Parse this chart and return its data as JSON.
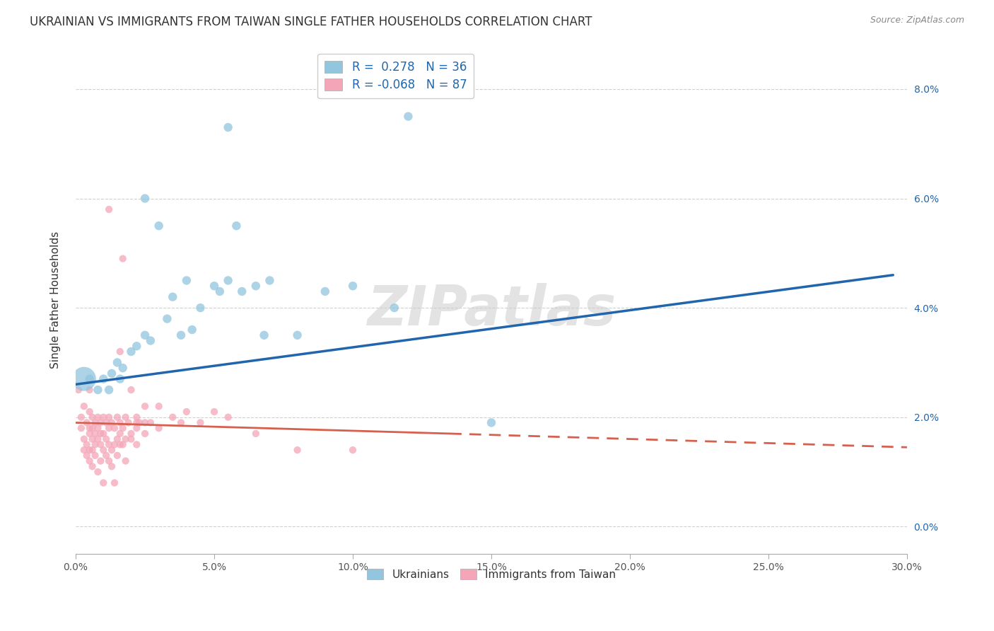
{
  "title": "UKRAINIAN VS IMMIGRANTS FROM TAIWAN SINGLE FATHER HOUSEHOLDS CORRELATION CHART",
  "source": "Source: ZipAtlas.com",
  "ylabel": "Single Father Households",
  "xlabel_ticks": [
    "0.0%",
    "5.0%",
    "10.0%",
    "15.0%",
    "20.0%",
    "25.0%",
    "30.0%"
  ],
  "ylabel_ticks_right": [
    "8.0%",
    "6.0%",
    "4.0%",
    "2.0%",
    "0.0%"
  ],
  "xlim": [
    0.0,
    0.3
  ],
  "ylim": [
    -0.005,
    0.088
  ],
  "background_color": "#ffffff",
  "watermark": "ZIPatlas",
  "blue_color": "#92c5de",
  "blue_line_color": "#2166ac",
  "pink_color": "#f4a6b8",
  "pink_line_color": "#d6604d",
  "blue_scatter": [
    [
      0.003,
      0.027
    ],
    [
      0.005,
      0.027
    ],
    [
      0.008,
      0.025
    ],
    [
      0.01,
      0.027
    ],
    [
      0.012,
      0.025
    ],
    [
      0.013,
      0.028
    ],
    [
      0.015,
      0.03
    ],
    [
      0.016,
      0.027
    ],
    [
      0.017,
      0.029
    ],
    [
      0.02,
      0.032
    ],
    [
      0.022,
      0.033
    ],
    [
      0.025,
      0.035
    ],
    [
      0.025,
      0.06
    ],
    [
      0.027,
      0.034
    ],
    [
      0.03,
      0.055
    ],
    [
      0.033,
      0.038
    ],
    [
      0.035,
      0.042
    ],
    [
      0.038,
      0.035
    ],
    [
      0.04,
      0.045
    ],
    [
      0.042,
      0.036
    ],
    [
      0.045,
      0.04
    ],
    [
      0.05,
      0.044
    ],
    [
      0.052,
      0.043
    ],
    [
      0.055,
      0.045
    ],
    [
      0.055,
      0.073
    ],
    [
      0.058,
      0.055
    ],
    [
      0.06,
      0.043
    ],
    [
      0.065,
      0.044
    ],
    [
      0.068,
      0.035
    ],
    [
      0.07,
      0.045
    ],
    [
      0.08,
      0.035
    ],
    [
      0.09,
      0.043
    ],
    [
      0.1,
      0.044
    ],
    [
      0.115,
      0.04
    ],
    [
      0.12,
      0.075
    ],
    [
      0.15,
      0.019
    ]
  ],
  "blue_sizes": [
    600,
    80,
    80,
    80,
    80,
    80,
    80,
    80,
    80,
    80,
    80,
    80,
    80,
    80,
    80,
    80,
    80,
    80,
    80,
    80,
    80,
    80,
    80,
    80,
    80,
    80,
    80,
    80,
    80,
    80,
    80,
    80,
    80,
    80,
    80,
    80
  ],
  "pink_scatter": [
    [
      0.001,
      0.025
    ],
    [
      0.002,
      0.02
    ],
    [
      0.002,
      0.018
    ],
    [
      0.003,
      0.022
    ],
    [
      0.003,
      0.016
    ],
    [
      0.003,
      0.014
    ],
    [
      0.004,
      0.019
    ],
    [
      0.004,
      0.015
    ],
    [
      0.004,
      0.013
    ],
    [
      0.005,
      0.025
    ],
    [
      0.005,
      0.021
    ],
    [
      0.005,
      0.018
    ],
    [
      0.005,
      0.017
    ],
    [
      0.005,
      0.014
    ],
    [
      0.005,
      0.012
    ],
    [
      0.006,
      0.02
    ],
    [
      0.006,
      0.018
    ],
    [
      0.006,
      0.016
    ],
    [
      0.006,
      0.014
    ],
    [
      0.006,
      0.011
    ],
    [
      0.007,
      0.019
    ],
    [
      0.007,
      0.017
    ],
    [
      0.007,
      0.015
    ],
    [
      0.007,
      0.013
    ],
    [
      0.008,
      0.02
    ],
    [
      0.008,
      0.018
    ],
    [
      0.008,
      0.016
    ],
    [
      0.008,
      0.01
    ],
    [
      0.009,
      0.019
    ],
    [
      0.009,
      0.017
    ],
    [
      0.009,
      0.015
    ],
    [
      0.009,
      0.012
    ],
    [
      0.01,
      0.02
    ],
    [
      0.01,
      0.017
    ],
    [
      0.01,
      0.014
    ],
    [
      0.01,
      0.008
    ],
    [
      0.011,
      0.019
    ],
    [
      0.011,
      0.016
    ],
    [
      0.011,
      0.013
    ],
    [
      0.012,
      0.058
    ],
    [
      0.012,
      0.02
    ],
    [
      0.012,
      0.018
    ],
    [
      0.012,
      0.015
    ],
    [
      0.012,
      0.012
    ],
    [
      0.013,
      0.019
    ],
    [
      0.013,
      0.014
    ],
    [
      0.013,
      0.011
    ],
    [
      0.014,
      0.018
    ],
    [
      0.014,
      0.015
    ],
    [
      0.014,
      0.008
    ],
    [
      0.015,
      0.02
    ],
    [
      0.015,
      0.016
    ],
    [
      0.015,
      0.013
    ],
    [
      0.016,
      0.032
    ],
    [
      0.016,
      0.019
    ],
    [
      0.016,
      0.017
    ],
    [
      0.016,
      0.015
    ],
    [
      0.017,
      0.049
    ],
    [
      0.017,
      0.018
    ],
    [
      0.017,
      0.015
    ],
    [
      0.018,
      0.02
    ],
    [
      0.018,
      0.016
    ],
    [
      0.018,
      0.012
    ],
    [
      0.019,
      0.019
    ],
    [
      0.02,
      0.025
    ],
    [
      0.02,
      0.017
    ],
    [
      0.02,
      0.016
    ],
    [
      0.022,
      0.019
    ],
    [
      0.022,
      0.02
    ],
    [
      0.022,
      0.018
    ],
    [
      0.022,
      0.015
    ],
    [
      0.023,
      0.019
    ],
    [
      0.025,
      0.022
    ],
    [
      0.025,
      0.019
    ],
    [
      0.025,
      0.017
    ],
    [
      0.027,
      0.019
    ],
    [
      0.03,
      0.022
    ],
    [
      0.03,
      0.018
    ],
    [
      0.035,
      0.02
    ],
    [
      0.038,
      0.019
    ],
    [
      0.04,
      0.021
    ],
    [
      0.045,
      0.019
    ],
    [
      0.05,
      0.021
    ],
    [
      0.055,
      0.02
    ],
    [
      0.065,
      0.017
    ],
    [
      0.08,
      0.014
    ],
    [
      0.1,
      0.014
    ]
  ],
  "pink_size": 55,
  "blue_line": {
    "x0": 0.0,
    "y0": 0.026,
    "x1": 0.295,
    "y1": 0.046
  },
  "pink_line_solid": {
    "x0": 0.0,
    "y0": 0.019,
    "x1": 0.135,
    "y1": 0.017
  },
  "pink_line_dashed": {
    "x0": 0.135,
    "y0": 0.017,
    "x1": 0.3,
    "y1": 0.0145
  },
  "grid_color": "#d0d0d0",
  "title_fontsize": 12,
  "axis_label_fontsize": 11,
  "tick_fontsize": 10,
  "legend_fontsize": 12
}
